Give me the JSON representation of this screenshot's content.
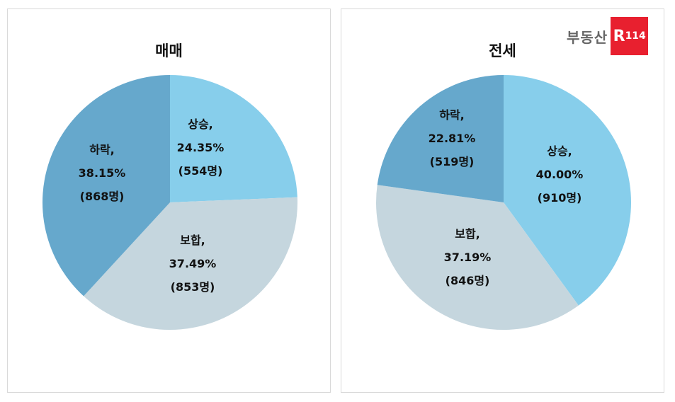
{
  "logo": {
    "text": "부동산",
    "badge_letter": "R",
    "badge_number": "114",
    "badge_color": "#e8202f"
  },
  "colors": {
    "up": "#87ceeb",
    "flat": "#c5d6de",
    "down": "#66a8cc"
  },
  "charts": [
    {
      "title": "매매",
      "slices": [
        {
          "key": "up",
          "name": "상승,",
          "pct": "24.35%",
          "count": "(554명)"
        },
        {
          "key": "flat",
          "name": "보합,",
          "pct": "37.49%",
          "count": "(853명)"
        },
        {
          "key": "down",
          "name": "하락,",
          "pct": "38.15%",
          "count": "(868명)"
        }
      ]
    },
    {
      "title": "전세",
      "slices": [
        {
          "key": "up",
          "name": "상승,",
          "pct": "40.00%",
          "count": "(910명)"
        },
        {
          "key": "flat",
          "name": "보합,",
          "pct": "37.19%",
          "count": "(846명)"
        },
        {
          "key": "down",
          "name": "하락,",
          "pct": "22.81%",
          "count": "(519명)"
        }
      ]
    }
  ],
  "chart_data": [
    {
      "type": "pie",
      "title": "매매",
      "categories": [
        "상승",
        "보합",
        "하락"
      ],
      "values": [
        24.35,
        37.49,
        38.15
      ],
      "counts": [
        554,
        853,
        868
      ],
      "unit": "%",
      "start_angle": "12 o'clock, clockwise",
      "legend": "none (inline labels)"
    },
    {
      "type": "pie",
      "title": "전세",
      "categories": [
        "상승",
        "보합",
        "하락"
      ],
      "values": [
        40.0,
        37.19,
        22.81
      ],
      "counts": [
        910,
        846,
        519
      ],
      "unit": "%",
      "start_angle": "12 o'clock, clockwise",
      "legend": "none (inline labels)"
    }
  ]
}
